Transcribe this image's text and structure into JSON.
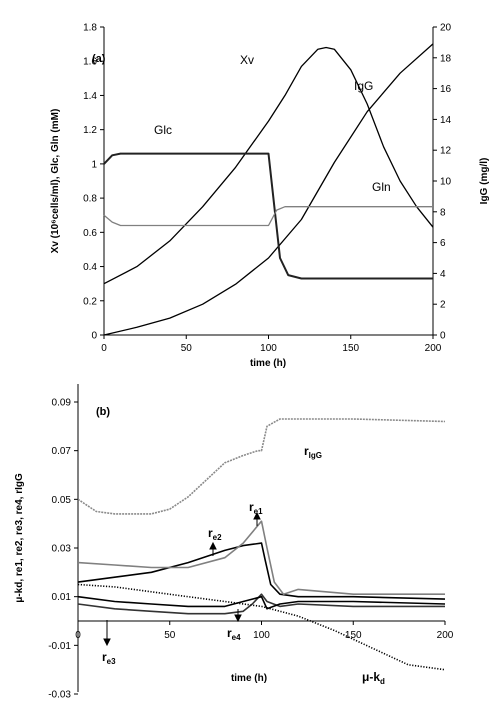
{
  "chart_data": [
    {
      "type": "line",
      "panel_label": "(a)",
      "xlabel": "time (h)",
      "ylabel_left": "Xv (10⁶cells/ml), Glc, Gln (mM)",
      "ylabel_right": "IgG (mg/l)",
      "xlim": [
        0,
        200
      ],
      "ylim_left": [
        0,
        1.8
      ],
      "ylim_right": [
        0,
        20
      ],
      "x_ticks": [
        0,
        50,
        100,
        150,
        200
      ],
      "yleft_ticks": [
        0,
        0.2,
        0.4,
        0.6,
        0.8,
        1,
        1.2,
        1.4,
        1.6,
        1.8
      ],
      "yright_ticks": [
        0,
        2,
        4,
        6,
        8,
        10,
        12,
        14,
        16,
        18,
        20
      ],
      "grid": false,
      "series": [
        {
          "name": "Xv",
          "axis": "left",
          "color": "#000000",
          "x": [
            0,
            20,
            40,
            60,
            80,
            100,
            110,
            120,
            130,
            135,
            140,
            150,
            160,
            170,
            180,
            190,
            200
          ],
          "y": [
            0.3,
            0.4,
            0.55,
            0.75,
            0.98,
            1.25,
            1.4,
            1.57,
            1.67,
            1.68,
            1.67,
            1.55,
            1.35,
            1.1,
            0.9,
            0.75,
            0.63
          ]
        },
        {
          "name": "IgG",
          "axis": "right",
          "color": "#000000",
          "x": [
            0,
            20,
            40,
            60,
            80,
            100,
            120,
            140,
            160,
            180,
            200
          ],
          "y": [
            0,
            0.5,
            1.1,
            2.0,
            3.3,
            5.0,
            7.5,
            11.2,
            14.5,
            17.0,
            18.9
          ]
        },
        {
          "name": "Glc",
          "axis": "left",
          "color": "#222222",
          "x": [
            0,
            5,
            10,
            50,
            100,
            103,
            107,
            112,
            120,
            200
          ],
          "y": [
            1.0,
            1.05,
            1.06,
            1.06,
            1.06,
            0.8,
            0.45,
            0.35,
            0.33,
            0.33
          ]
        },
        {
          "name": "Gln",
          "axis": "left",
          "color": "#808080",
          "x": [
            0,
            5,
            10,
            50,
            100,
            105,
            110,
            200
          ],
          "y": [
            0.7,
            0.66,
            0.64,
            0.64,
            0.64,
            0.73,
            0.75,
            0.75
          ]
        }
      ],
      "labels": {
        "xv": "Xv",
        "igg": "IgG",
        "glc": "Glc",
        "gln": "Gln"
      }
    },
    {
      "type": "line",
      "panel_label": "(b)",
      "xlabel": "time (h)",
      "ylabel_left": "μ-kd, re1, re2, re3, re4, rIgG",
      "xlim": [
        0,
        200
      ],
      "ylim": [
        -0.03,
        0.1
      ],
      "x_ticks": [
        0,
        50,
        100,
        150,
        200
      ],
      "y_ticks": [
        -0.03,
        -0.01,
        0.01,
        0.03,
        0.05,
        0.07,
        0.09
      ],
      "y_tick_labels": [
        "-0.03",
        "-0.01",
        "0.01",
        "0.03",
        "0.05",
        "0.07",
        "0.09"
      ],
      "grid": false,
      "series": [
        {
          "name": "rIgG",
          "color": "#8a8a8a",
          "dash": "2,1",
          "x": [
            0,
            10,
            20,
            40,
            50,
            60,
            70,
            80,
            90,
            98,
            100,
            103,
            110,
            150,
            200
          ],
          "y": [
            0.05,
            0.045,
            0.044,
            0.044,
            0.046,
            0.051,
            0.058,
            0.065,
            0.068,
            0.07,
            0.07,
            0.08,
            0.083,
            0.083,
            0.082
          ]
        },
        {
          "name": "re1",
          "color": "#000000",
          "dash": "",
          "x": [
            0,
            20,
            40,
            60,
            80,
            90,
            100,
            102,
            105,
            110,
            120,
            150,
            200
          ],
          "y": [
            0.016,
            0.018,
            0.02,
            0.024,
            0.029,
            0.031,
            0.032,
            0.025,
            0.015,
            0.011,
            0.01,
            0.01,
            0.009
          ]
        },
        {
          "name": "re2",
          "color": "#808080",
          "dash": "",
          "x": [
            0,
            20,
            40,
            60,
            80,
            90,
            100,
            103,
            107,
            112,
            120,
            150,
            200
          ],
          "y": [
            0.024,
            0.023,
            0.022,
            0.022,
            0.026,
            0.032,
            0.041,
            0.03,
            0.016,
            0.011,
            0.013,
            0.011,
            0.011
          ]
        },
        {
          "name": "re3",
          "color": "#333333",
          "dash": "",
          "x": [
            0,
            20,
            40,
            60,
            80,
            90,
            95,
            100,
            103,
            110,
            120,
            150,
            200
          ],
          "y": [
            0.007,
            0.005,
            0.004,
            0.003,
            0.003,
            0.004,
            0.007,
            0.011,
            0.008,
            0.006,
            0.007,
            0.006,
            0.006
          ]
        },
        {
          "name": "re4",
          "color": "#000000",
          "dash": "",
          "x": [
            0,
            20,
            40,
            60,
            80,
            90,
            100,
            103,
            110,
            120,
            150,
            200
          ],
          "y": [
            0.01,
            0.008,
            0.007,
            0.006,
            0.006,
            0.008,
            0.01,
            0.005,
            0.007,
            0.008,
            0.008,
            0.007
          ]
        },
        {
          "name": "μ-kd",
          "color": "#000000",
          "dash": "1.2,1.6",
          "x": [
            0,
            20,
            40,
            60,
            80,
            100,
            120,
            140,
            160,
            180,
            200
          ],
          "y": [
            0.015,
            0.014,
            0.012,
            0.01,
            0.008,
            0.006,
            0.002,
            -0.004,
            -0.011,
            -0.018,
            -0.02
          ]
        }
      ],
      "labels": {
        "rigg_main": "r",
        "rigg_sub": "IgG",
        "re1_main": "r",
        "re1_sub": "e1",
        "re2_main": "r",
        "re2_sub": "e2",
        "re3_main": "r",
        "re3_sub": "e3",
        "re4_main": "r",
        "re4_sub": "e4",
        "mukd_main": "μ-k",
        "mukd_sub": "d"
      }
    }
  ]
}
